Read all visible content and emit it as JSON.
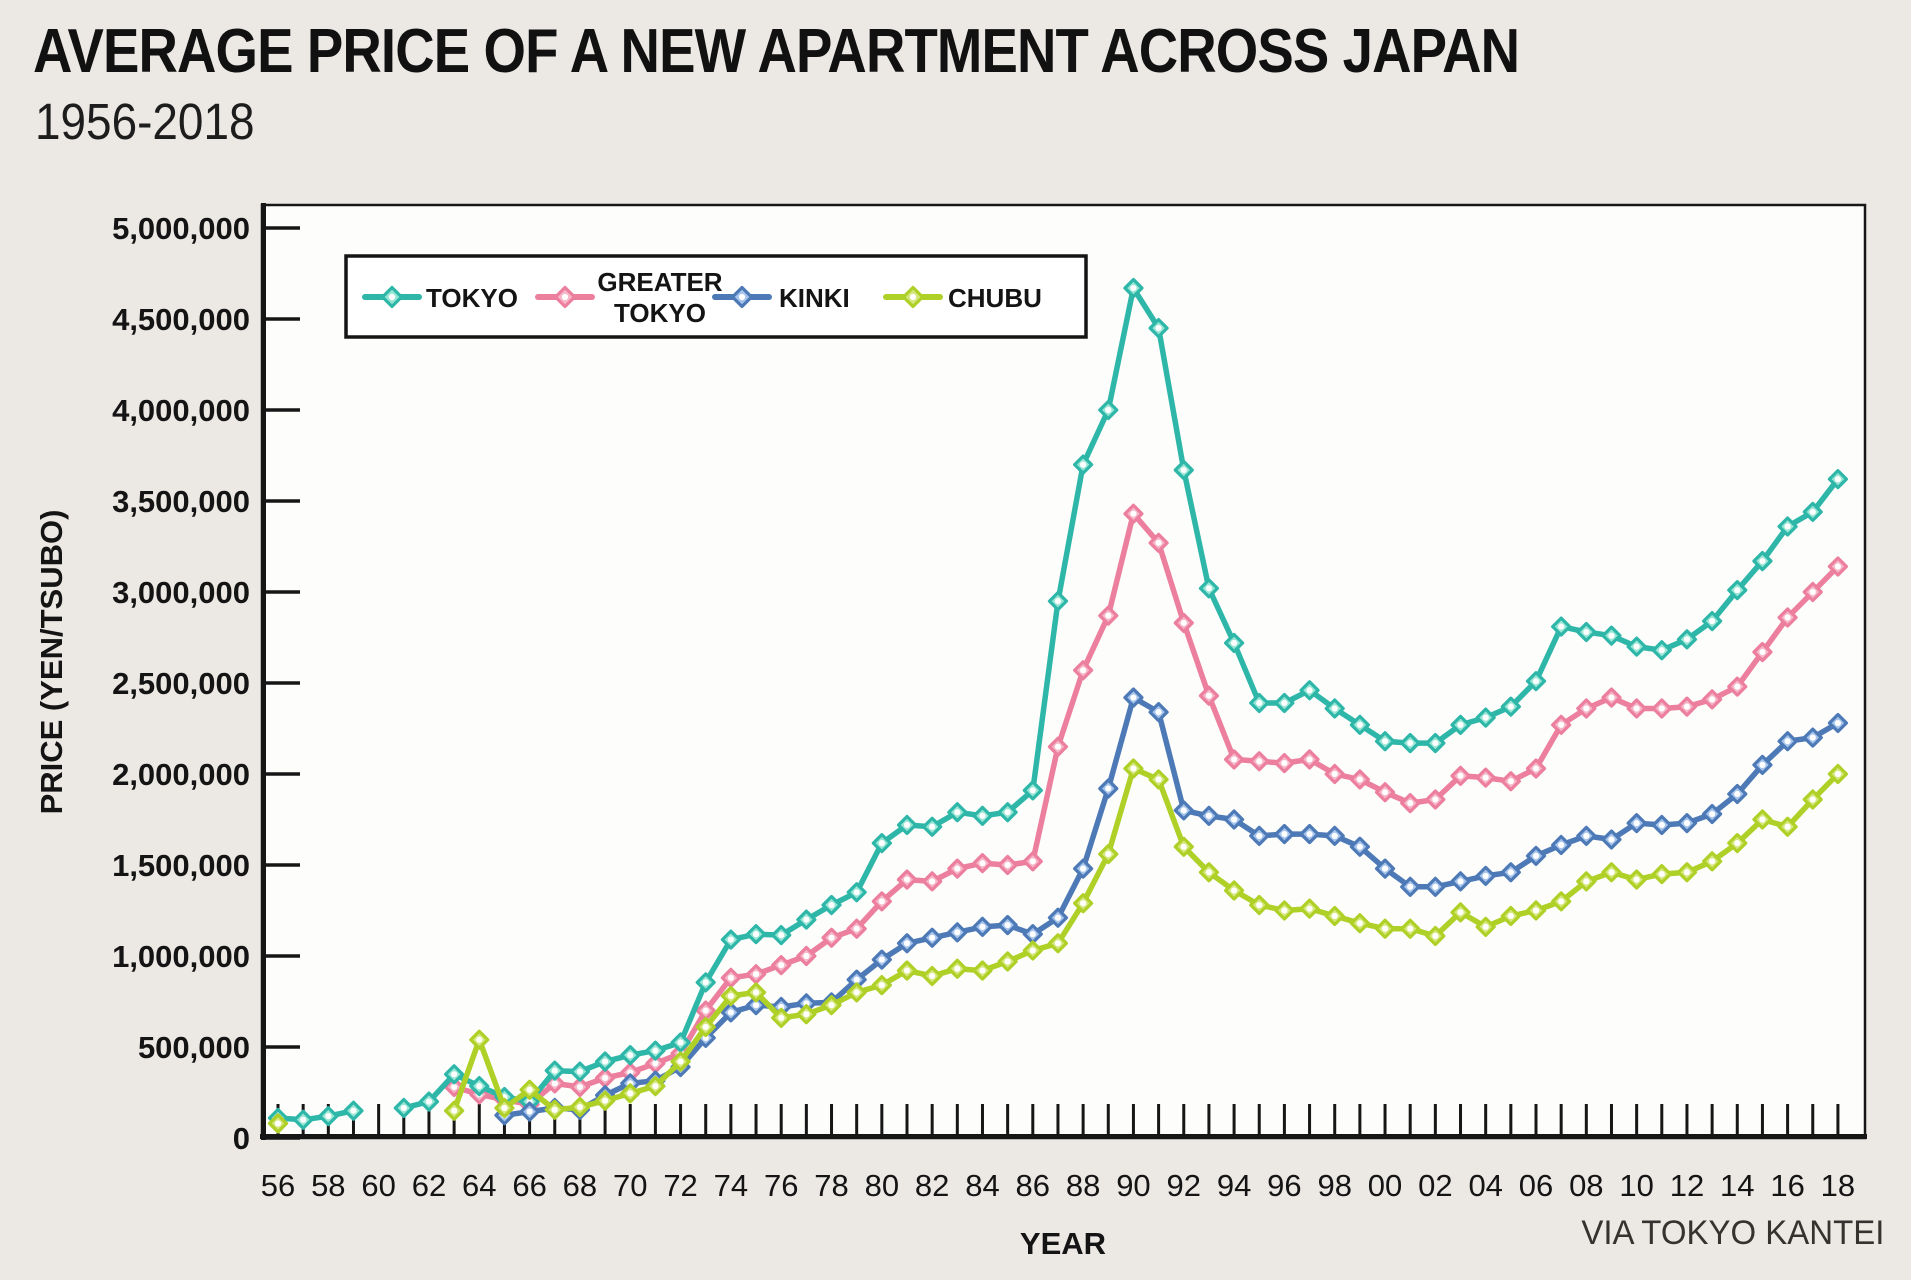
{
  "page": {
    "title": "AVERAGE PRICE OF A NEW APARTMENT ACROSS JAPAN",
    "subtitle": "1956-2018",
    "source": "VIA TOKYO KANTEI",
    "background_color": "#ece8e4",
    "plot_background_color": "#fdfdfc",
    "axis_color": "#161616"
  },
  "chart_data": {
    "type": "line",
    "title": "AVERAGE PRICE OF A NEW APARTMENT ACROSS JAPAN 1956-2018",
    "xlabel": "YEAR",
    "ylabel": "PRICE (YEN/TSUBO)",
    "x_range": [
      1956,
      2018
    ],
    "ylim": [
      0,
      5000000
    ],
    "y_tick_step": 500000,
    "grid": false,
    "legend_position": "top-left-inside",
    "x_tick_label_years": [
      1956,
      1958,
      1960,
      1962,
      1964,
      1966,
      1968,
      1970,
      1972,
      1974,
      1976,
      1978,
      1980,
      1982,
      1984,
      1986,
      1988,
      1990,
      1992,
      1994,
      1996,
      1998,
      2000,
      2002,
      2004,
      2006,
      2008,
      2010,
      2012,
      2014,
      2016,
      2018
    ],
    "x_tick_labels": [
      "56",
      "58",
      "60",
      "62",
      "64",
      "66",
      "68",
      "70",
      "72",
      "74",
      "76",
      "78",
      "80",
      "82",
      "84",
      "86",
      "88",
      "90",
      "92",
      "94",
      "96",
      "98",
      "00",
      "02",
      "04",
      "06",
      "08",
      "10",
      "12",
      "14",
      "16",
      "18"
    ],
    "y_tick_values": [
      0,
      500000,
      1000000,
      1500000,
      2000000,
      2500000,
      3000000,
      3500000,
      4000000,
      4500000,
      5000000
    ],
    "y_tick_labels": [
      "0",
      "500,000",
      "1,000,000",
      "1,500,000",
      "2,000,000",
      "2,500,000",
      "3,000,000",
      "3,500,000",
      "4,000,000",
      "4,500,000",
      "5,000,000"
    ],
    "years": [
      1956,
      1957,
      1958,
      1959,
      1960,
      1961,
      1962,
      1963,
      1964,
      1965,
      1966,
      1967,
      1968,
      1969,
      1970,
      1971,
      1972,
      1973,
      1974,
      1975,
      1976,
      1977,
      1978,
      1979,
      1980,
      1981,
      1982,
      1983,
      1984,
      1985,
      1986,
      1987,
      1988,
      1989,
      1990,
      1991,
      1992,
      1993,
      1994,
      1995,
      1996,
      1997,
      1998,
      1999,
      2000,
      2001,
      2002,
      2003,
      2004,
      2005,
      2006,
      2007,
      2008,
      2009,
      2010,
      2011,
      2012,
      2013,
      2014,
      2015,
      2016,
      2017,
      2018
    ],
    "series": [
      {
        "name": "TOKYO",
        "legend_lines": [
          "TOKYO"
        ],
        "color": "#2eb7a9",
        "marker_fill": "#99e6d5",
        "values": [
          110000,
          100000,
          120000,
          150000,
          null,
          165000,
          200000,
          350000,
          285000,
          225000,
          200000,
          370000,
          365000,
          420000,
          455000,
          480000,
          525000,
          855000,
          1090000,
          1120000,
          1115000,
          1200000,
          1280000,
          1350000,
          1620000,
          1720000,
          1710000,
          1790000,
          1770000,
          1790000,
          1910000,
          2950000,
          3700000,
          4000000,
          4670000,
          4450000,
          3670000,
          3020000,
          2720000,
          2390000,
          2390000,
          2460000,
          2360000,
          2270000,
          2180000,
          2170000,
          2170000,
          2270000,
          2310000,
          2370000,
          2510000,
          2810000,
          2780000,
          2760000,
          2700000,
          2680000,
          2740000,
          2840000,
          3010000,
          3170000,
          3360000,
          3440000,
          3620000
        ]
      },
      {
        "name": "GREATER TOKYO",
        "legend_lines": [
          "GREATER",
          "TOKYO"
        ],
        "color": "#ec7e9e",
        "marker_fill": "#f6b7c9",
        "values": [
          null,
          null,
          null,
          null,
          null,
          null,
          null,
          280000,
          240000,
          210000,
          185000,
          300000,
          280000,
          330000,
          360000,
          410000,
          465000,
          700000,
          880000,
          900000,
          950000,
          1000000,
          1100000,
          1150000,
          1300000,
          1420000,
          1410000,
          1480000,
          1510000,
          1500000,
          1520000,
          2150000,
          2570000,
          2870000,
          3430000,
          3270000,
          2830000,
          2430000,
          2080000,
          2070000,
          2060000,
          2080000,
          2000000,
          1970000,
          1900000,
          1840000,
          1860000,
          1990000,
          1980000,
          1960000,
          2030000,
          2270000,
          2360000,
          2420000,
          2360000,
          2360000,
          2370000,
          2410000,
          2480000,
          2670000,
          2860000,
          3000000,
          3140000
        ]
      },
      {
        "name": "KINKI",
        "legend_lines": [
          "KINKI"
        ],
        "color": "#4d7ab6",
        "marker_fill": "#a6c4ec",
        "values": [
          null,
          null,
          null,
          null,
          null,
          null,
          null,
          null,
          null,
          125000,
          145000,
          165000,
          155000,
          235000,
          300000,
          315000,
          390000,
          550000,
          690000,
          730000,
          720000,
          740000,
          745000,
          870000,
          980000,
          1070000,
          1100000,
          1130000,
          1160000,
          1170000,
          1120000,
          1210000,
          1480000,
          1920000,
          2420000,
          2340000,
          1800000,
          1770000,
          1750000,
          1660000,
          1670000,
          1670000,
          1660000,
          1600000,
          1480000,
          1380000,
          1380000,
          1410000,
          1440000,
          1460000,
          1550000,
          1610000,
          1660000,
          1640000,
          1730000,
          1720000,
          1730000,
          1780000,
          1890000,
          2050000,
          2180000,
          2200000,
          2280000
        ]
      },
      {
        "name": "CHUBU",
        "legend_lines": [
          "CHUBU"
        ],
        "color": "#aed027",
        "marker_fill": "#d7e77f",
        "values": [
          80000,
          null,
          null,
          null,
          null,
          null,
          null,
          150000,
          540000,
          165000,
          265000,
          155000,
          170000,
          205000,
          245000,
          285000,
          420000,
          610000,
          780000,
          800000,
          660000,
          680000,
          730000,
          800000,
          840000,
          920000,
          890000,
          930000,
          920000,
          970000,
          1030000,
          1070000,
          1290000,
          1560000,
          2030000,
          1970000,
          1600000,
          1460000,
          1360000,
          1280000,
          1250000,
          1260000,
          1220000,
          1180000,
          1150000,
          1150000,
          1110000,
          1240000,
          1160000,
          1220000,
          1250000,
          1300000,
          1410000,
          1460000,
          1420000,
          1450000,
          1460000,
          1520000,
          1620000,
          1750000,
          1710000,
          1860000,
          2000000
        ]
      }
    ]
  }
}
